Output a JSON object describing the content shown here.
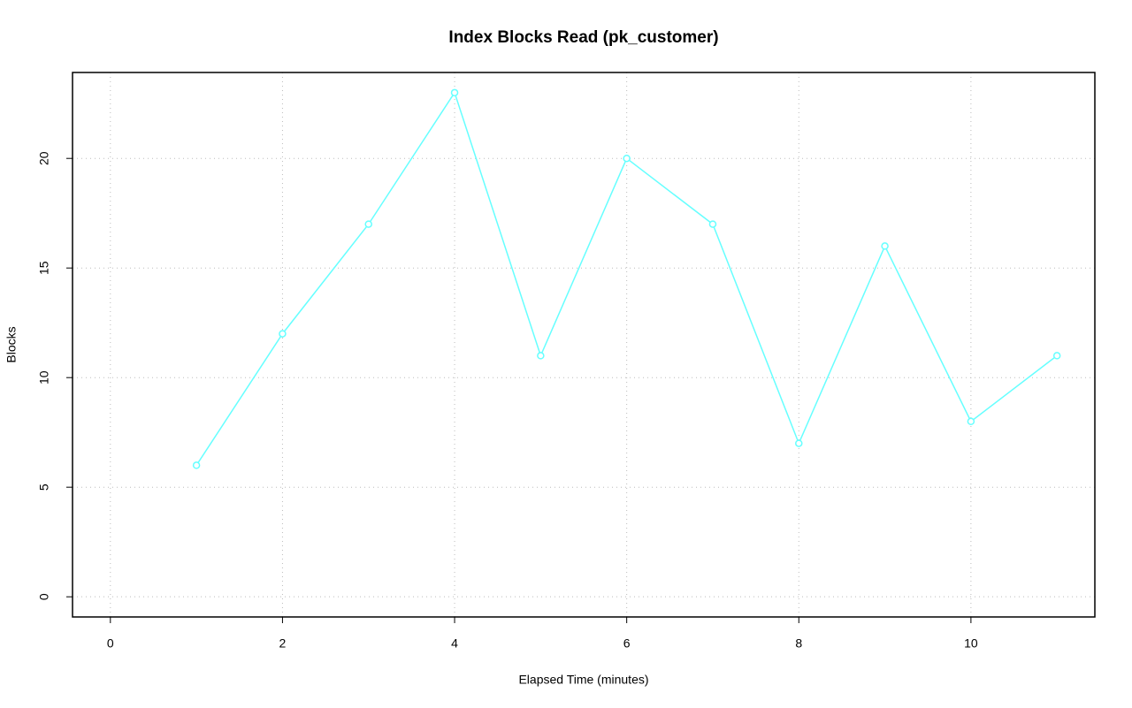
{
  "chart_data": {
    "type": "line",
    "title": "Index Blocks Read (pk_customer)",
    "x_label": "Elapsed Time (minutes)",
    "y_label": "Blocks",
    "x": [
      1,
      2,
      3,
      4,
      5,
      6,
      7,
      8,
      9,
      10,
      11
    ],
    "values": [
      6,
      12,
      17,
      23,
      11,
      20,
      17,
      7,
      16,
      8,
      11
    ],
    "color": "#66ffff",
    "markers": true,
    "xlim": [
      -0.44,
      11.44
    ],
    "xticks": [
      0,
      2,
      4,
      6,
      8,
      10
    ],
    "ylim": [
      -0.92,
      23.92
    ],
    "yticks": [
      0,
      5,
      10,
      15,
      20
    ],
    "grid": true
  }
}
